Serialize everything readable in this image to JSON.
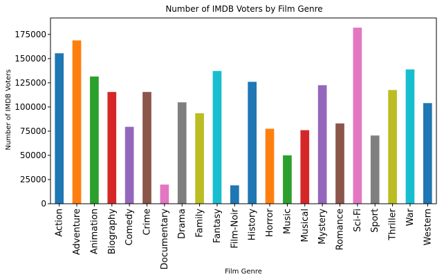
{
  "chart_data": {
    "type": "bar",
    "title": "Number of IMDB Voters by Film Genre",
    "xlabel": "Film Genre",
    "ylabel": "Number of IMDB Voters",
    "ylim": [
      0,
      192000
    ],
    "yticks": [
      0,
      25000,
      50000,
      75000,
      100000,
      125000,
      150000,
      175000
    ],
    "grid": false,
    "categories": [
      "Action",
      "Adventure",
      "Animation",
      "Biography",
      "Comedy",
      "Crime",
      "Documentary",
      "Drama",
      "Family",
      "Fantasy",
      "Film-Noir",
      "History",
      "Horror",
      "Music",
      "Musical",
      "Mystery",
      "Romance",
      "Sci-Fi",
      "Sport",
      "Thriller",
      "War",
      "Western"
    ],
    "values": [
      155500,
      168800,
      131500,
      115500,
      79500,
      115500,
      19800,
      104800,
      93500,
      137200,
      19000,
      126000,
      77500,
      50000,
      76000,
      122500,
      83000,
      182000,
      70500,
      117500,
      138800,
      104000
    ],
    "colors": [
      "#1f77b4",
      "#ff7f0e",
      "#2ca02c",
      "#d62728",
      "#9467bd",
      "#8c564b",
      "#e377c2",
      "#7f7f7f",
      "#bcbd22",
      "#17becf",
      "#1f77b4",
      "#1f77b4",
      "#ff7f0e",
      "#2ca02c",
      "#d62728",
      "#9467bd",
      "#8c564b",
      "#e377c2",
      "#7f7f7f",
      "#bcbd22",
      "#17becf",
      "#1f77b4"
    ]
  }
}
